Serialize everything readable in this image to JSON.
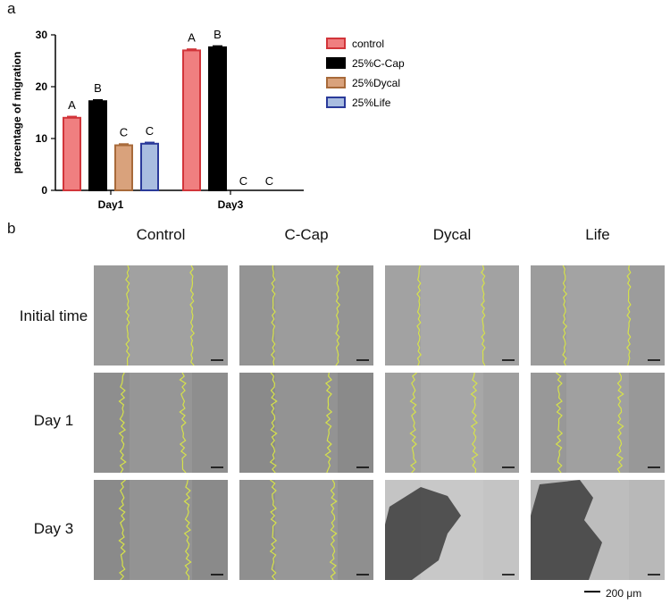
{
  "panel_a_label": "a",
  "panel_b_label": "b",
  "chart_data": {
    "type": "bar",
    "ylabel": "percentage of migration",
    "ylim": [
      0,
      30
    ],
    "yticks": [
      "0",
      "10",
      "20",
      "30"
    ],
    "categories": [
      "Day1",
      "Day3"
    ],
    "legend_position": "right",
    "series": [
      {
        "name": "control",
        "color": "#f07f80",
        "edge": "#d2353a",
        "values": [
          14.0,
          27.0
        ],
        "letters": [
          "A",
          "A"
        ]
      },
      {
        "name": "25%C-Cap",
        "color": "#000000",
        "edge": "#000000",
        "values": [
          17.2,
          27.6
        ],
        "letters": [
          "B",
          "B"
        ]
      },
      {
        "name": "25%Dycal",
        "color": "#d9a27c",
        "edge": "#a86a3a",
        "values": [
          8.7,
          0
        ],
        "letters": [
          "C",
          "C"
        ]
      },
      {
        "name": "25%Life",
        "color": "#a9bde0",
        "edge": "#2a3a9a",
        "values": [
          9.0,
          0
        ],
        "letters": [
          "C",
          "C"
        ]
      }
    ]
  },
  "columns": [
    "Control",
    "C-Cap",
    "Dycal",
    "Life"
  ],
  "rows": [
    "Initial time",
    "Day 1",
    "Day 3"
  ],
  "scale_bar": "200 μm",
  "micro_shades": [
    [
      "#9a9a9a",
      "#949494",
      "#a2a2a2",
      "#9c9c9c"
    ],
    [
      "#8e8e8e",
      "#8a8a8a",
      "#a0a0a0",
      "#989898"
    ],
    [
      "#8a8a8a",
      "#8f8f8f",
      "#c4c4c4",
      "#b8b8b8"
    ]
  ]
}
